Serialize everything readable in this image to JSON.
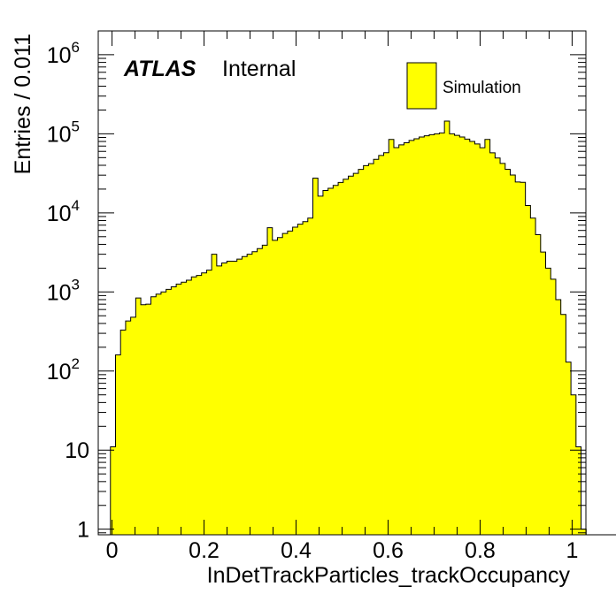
{
  "chart_data": {
    "type": "bar",
    "style": "histogram",
    "xlabel": "InDetTrackParticles_trackOccupancy",
    "ylabel": "Entries / 0.011",
    "atlas_label": "ATLAS",
    "atlas_sublabel": "Internal",
    "legend": {
      "entries": [
        "Simulation"
      ],
      "placement": "top-right"
    },
    "yscale": "log",
    "xlim": [
      -0.03,
      1.03
    ],
    "ylim": [
      0.85,
      2000000
    ],
    "fill_color": "#ffff00",
    "line_color": "#000000",
    "x_ticks": [
      {
        "v": 0,
        "label": "0"
      },
      {
        "v": 0.2,
        "label": "0.2"
      },
      {
        "v": 0.4,
        "label": "0.4"
      },
      {
        "v": 0.6,
        "label": "0.6"
      },
      {
        "v": 0.8,
        "label": "0.8"
      },
      {
        "v": 1,
        "label": "1"
      }
    ],
    "y_ticks": [
      {
        "v": 1,
        "base": "1",
        "exp": ""
      },
      {
        "v": 10,
        "base": "10",
        "exp": ""
      },
      {
        "v": 100,
        "base": "10",
        "exp": "2"
      },
      {
        "v": 1000,
        "base": "10",
        "exp": "3"
      },
      {
        "v": 10000,
        "base": "10",
        "exp": "4"
      },
      {
        "v": 100000,
        "base": "10",
        "exp": "5"
      },
      {
        "v": 1000000,
        "base": "10",
        "exp": "6"
      }
    ],
    "bin_start": -0.0035,
    "bin_width": 0.011,
    "values": [
      11,
      160,
      330,
      430,
      480,
      840,
      690,
      700,
      870,
      940,
      1000,
      1080,
      1160,
      1260,
      1330,
      1410,
      1550,
      1620,
      1740,
      1890,
      3000,
      2130,
      2330,
      2450,
      2450,
      2600,
      2800,
      3000,
      3230,
      3540,
      3900,
      6500,
      4500,
      4880,
      5500,
      5900,
      6600,
      7200,
      7750,
      8600,
      27500,
      16300,
      19200,
      20500,
      22300,
      24300,
      26700,
      29200,
      31600,
      35500,
      39600,
      42000,
      47500,
      53200,
      57700,
      85000,
      67000,
      72500,
      77000,
      82400,
      86500,
      91000,
      94400,
      97600,
      100000,
      102500,
      145000,
      100000,
      95500,
      91000,
      85800,
      80100,
      74400,
      66800,
      84800,
      57500,
      49500,
      42200,
      35600,
      30100,
      24600,
      24400,
      12400,
      8600,
      5300,
      3200,
      2000,
      1450,
      800,
      520,
      130,
      50,
      11,
      1,
      0,
      0,
      0,
      0,
      0,
      0
    ]
  }
}
